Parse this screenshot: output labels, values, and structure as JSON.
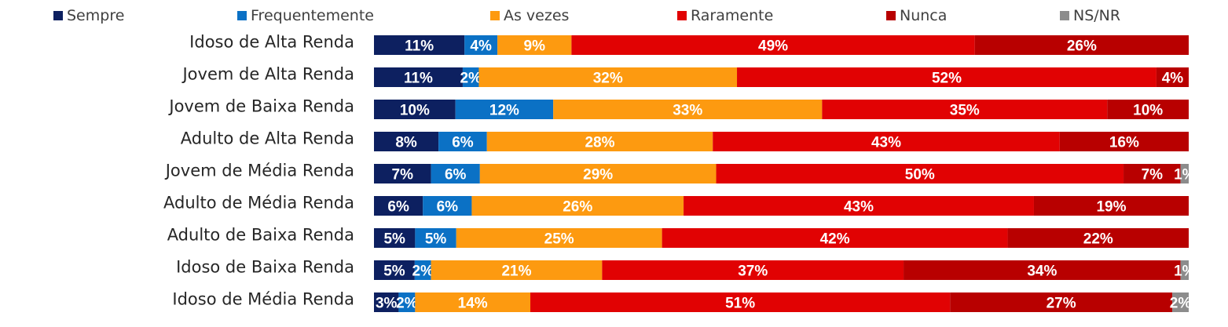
{
  "chart_data": {
    "type": "bar",
    "orientation": "horizontal",
    "stacked": true,
    "normalized_percent": true,
    "legend_position": "top",
    "grid": false,
    "xlim": [
      0,
      100
    ],
    "categories": [
      "Idoso de Alta Renda",
      "Jovem de Alta Renda",
      "Jovem de Baixa Renda",
      "Adulto de Alta Renda",
      "Jovem de Média Renda",
      "Adulto de Média Renda",
      "Adulto de Baixa Renda",
      "Idoso de Baixa Renda",
      "Idoso de Média Renda"
    ],
    "series": [
      {
        "name": "Sempre",
        "color": "#0d2060",
        "values": [
          11,
          11,
          10,
          8,
          7,
          6,
          5,
          5,
          3
        ],
        "labels": [
          "11%",
          "11%",
          "10%",
          "8%",
          "7%",
          "6%",
          "5%",
          "5%",
          "3%"
        ]
      },
      {
        "name": "Frequentemente",
        "color": "#0b71c5",
        "values": [
          4,
          2,
          12,
          6,
          6,
          6,
          5,
          2,
          2
        ],
        "labels": [
          "4%",
          "2%",
          "12%",
          "6%",
          "6%",
          "6%",
          "5%",
          "2%",
          "2%"
        ]
      },
      {
        "name": "As vezes",
        "color": "#fd9a10",
        "values": [
          9,
          32,
          33,
          28,
          29,
          26,
          25,
          21,
          14
        ],
        "labels": [
          "9%",
          "32%",
          "33%",
          "28%",
          "29%",
          "26%",
          "25%",
          "21%",
          "14%"
        ]
      },
      {
        "name": "Raramente",
        "color": "#e10203",
        "values": [
          49,
          52,
          35,
          43,
          50,
          43,
          42,
          37,
          51
        ],
        "labels": [
          "49%",
          "52%",
          "35%",
          "43%",
          "50%",
          "43%",
          "42%",
          "37%",
          "51%"
        ]
      },
      {
        "name": "Nunca",
        "color": "#b80000",
        "values": [
          26,
          4,
          10,
          16,
          7,
          19,
          22,
          34,
          27
        ],
        "labels": [
          "26%",
          "4%",
          "10%",
          "16%",
          "7%",
          "19%",
          "22%",
          "34%",
          "27%"
        ]
      },
      {
        "name": "NS/NR",
        "color": "#8c8c8c",
        "values": [
          0,
          0,
          0,
          0,
          1,
          0,
          0,
          1,
          2
        ],
        "labels": [
          "",
          "",
          "",
          "",
          "1%",
          "",
          "",
          "1%",
          "2%"
        ]
      }
    ]
  }
}
